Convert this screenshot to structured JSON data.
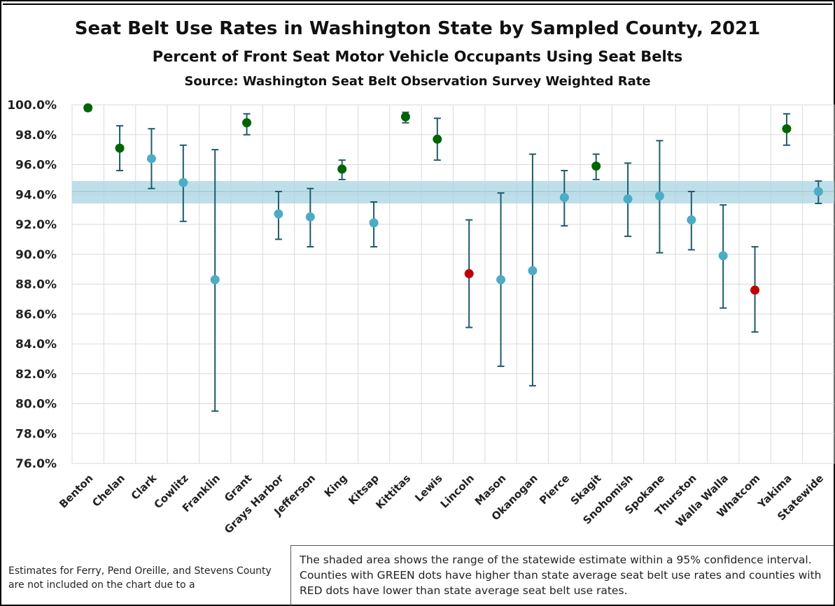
{
  "chart_data": {
    "type": "scatter",
    "title": "Seat Belt Use Rates in Washington State by Sampled County, 2021",
    "subtitle": "Percent of Front Seat Motor Vehicle Occupants Using Seat Belts",
    "source": "Source: Washington Seat Belt Observation Survey Weighted Rate",
    "ylim": [
      76.0,
      100.0
    ],
    "y_ticks": [
      "76.0%",
      "78.0%",
      "80.0%",
      "82.0%",
      "84.0%",
      "86.0%",
      "88.0%",
      "90.0%",
      "92.0%",
      "94.0%",
      "96.0%",
      "98.0%",
      "100.0%"
    ],
    "y_tick_values": [
      76,
      78,
      80,
      82,
      84,
      86,
      88,
      90,
      92,
      94,
      96,
      98,
      100
    ],
    "grid": true,
    "statewide_band": {
      "low": 93.4,
      "high": 94.9,
      "estimate": 94.2
    },
    "colors": {
      "higher": "#006400",
      "average": "#4bacc6",
      "lower": "#c00000",
      "error_bar": "#1f5b6b",
      "band": "#a8d4e2",
      "grid": "#d9d9d9"
    },
    "categories": [
      "Benton",
      "Chelan",
      "Clark",
      "Cowlitz",
      "Franklin",
      "Grant",
      "Grays Harbor",
      "Jefferson",
      "King",
      "Kitsap",
      "Kittitas",
      "Lewis",
      "Lincoln",
      "Mason",
      "Okanogan",
      "Pierce",
      "Skagit",
      "Snohomish",
      "Spokane",
      "Thurston",
      "Walla Walla",
      "Whatcom",
      "Yakima",
      "Statewide"
    ],
    "values": [
      99.8,
      97.1,
      96.4,
      94.8,
      88.3,
      98.8,
      92.7,
      92.5,
      95.7,
      92.1,
      99.2,
      97.7,
      88.7,
      88.3,
      88.9,
      93.8,
      95.9,
      93.7,
      93.9,
      92.3,
      89.9,
      87.6,
      98.4,
      94.2
    ],
    "ci_low": [
      99.6,
      95.6,
      94.4,
      92.2,
      79.5,
      98.0,
      91.0,
      90.5,
      95.0,
      90.5,
      98.8,
      96.3,
      85.1,
      82.5,
      81.2,
      91.9,
      95.0,
      91.2,
      90.1,
      90.3,
      86.4,
      84.8,
      97.3,
      93.4
    ],
    "ci_high": [
      99.9,
      98.6,
      98.4,
      97.3,
      97.0,
      99.4,
      94.2,
      94.4,
      96.3,
      93.5,
      99.5,
      99.1,
      92.3,
      94.1,
      96.7,
      95.6,
      96.7,
      96.1,
      97.6,
      94.2,
      93.3,
      90.5,
      99.4,
      94.9
    ],
    "status": [
      "higher",
      "higher",
      "average",
      "average",
      "average",
      "higher",
      "average",
      "average",
      "higher",
      "average",
      "higher",
      "higher",
      "lower",
      "average",
      "average",
      "average",
      "higher",
      "average",
      "average",
      "average",
      "average",
      "lower",
      "higher",
      "average"
    ]
  },
  "notes": {
    "left": "Estimates for Ferry, Pend Oreille, and Stevens County are not included on the chart due to a",
    "box": "The shaded area shows the range of the statewide estimate within a 95% confidence interval. Counties with GREEN dots have higher than state average seat belt use rates and counties with RED dots have lower than state average seat belt use rates."
  }
}
